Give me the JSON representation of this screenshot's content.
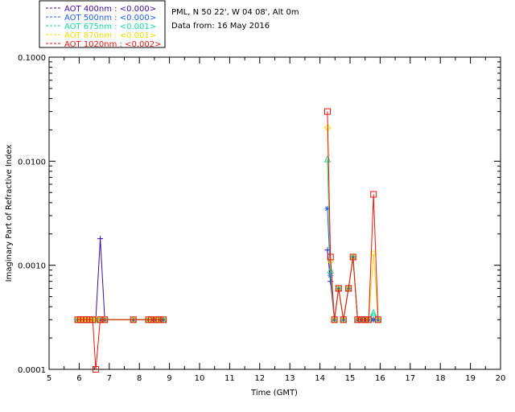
{
  "header": {
    "location": "PML, N 50 22', W 04 08', Alt 0m",
    "date": "Data from: 16 May 2016"
  },
  "chart_data": {
    "type": "line",
    "title": "",
    "xlabel": "Time (GMT)",
    "ylabel": "Imaginary Part of Refractive Index",
    "xlim": [
      5,
      20
    ],
    "ylim": [
      0.0001,
      0.1
    ],
    "yscale": "log",
    "grid": false,
    "legend_position": "top-left",
    "x_ticks": [
      "5",
      "6",
      "7",
      "8",
      "9",
      "10",
      "11",
      "12",
      "13",
      "14",
      "15",
      "16",
      "17",
      "18",
      "19",
      "20"
    ],
    "y_ticks": [
      {
        "value": 0.0001,
        "label": "0.0001"
      },
      {
        "value": 0.001,
        "label": "0.0010"
      },
      {
        "value": 0.01,
        "label": "0.0100"
      },
      {
        "value": 0.1,
        "label": "0.1000"
      }
    ],
    "series": [
      {
        "name": "AOT  400nm : <0.000>",
        "color": "#3c0ca8",
        "marker": "plus",
        "x": [
          5.95,
          6.05,
          6.15,
          6.25,
          6.35,
          6.45,
          6.55,
          6.7,
          6.85,
          7.8,
          8.3,
          8.4,
          8.55,
          8.65,
          8.8,
          14.25,
          14.35,
          14.48,
          14.62,
          14.78,
          14.95,
          15.1,
          15.25,
          15.38,
          15.5,
          15.62,
          15.78,
          15.93
        ],
        "y": [
          0.0003,
          0.0003,
          0.0003,
          0.0003,
          0.0003,
          0.0003,
          0.0003,
          0.0018,
          0.0003,
          0.0003,
          0.0003,
          0.0003,
          0.0003,
          0.0003,
          0.0003,
          0.0014,
          0.0007,
          0.0003,
          0.0006,
          0.0003,
          0.0006,
          0.0012,
          0.0003,
          0.0003,
          0.0003,
          0.0003,
          0.0003,
          0.0003
        ]
      },
      {
        "name": "AOT  500nm : <0.000>",
        "color": "#1f5ef0",
        "marker": "asterisk",
        "x": [
          5.95,
          6.05,
          6.15,
          6.25,
          6.35,
          6.45,
          6.55,
          6.7,
          6.85,
          7.8,
          8.3,
          8.4,
          8.55,
          8.65,
          8.8,
          14.25,
          14.35,
          14.48,
          14.62,
          14.78,
          14.95,
          15.1,
          15.25,
          15.38,
          15.5,
          15.62,
          15.78,
          15.93
        ],
        "y": [
          0.0003,
          0.0003,
          0.0003,
          0.0003,
          0.0003,
          0.0003,
          0.0003,
          0.0003,
          0.0003,
          0.0003,
          0.0003,
          0.0003,
          0.0003,
          0.0003,
          0.0003,
          0.0035,
          0.0008,
          0.0003,
          0.0006,
          0.0003,
          0.0006,
          0.0012,
          0.0003,
          0.0003,
          0.0003,
          0.0003,
          0.0003,
          0.0003
        ]
      },
      {
        "name": "AOT  675nm : <0.001>",
        "color": "#16d6a0",
        "marker": "triangle",
        "x": [
          5.95,
          6.05,
          6.15,
          6.25,
          6.35,
          6.45,
          6.55,
          6.7,
          6.85,
          7.8,
          8.3,
          8.4,
          8.55,
          8.65,
          8.8,
          14.25,
          14.35,
          14.48,
          14.62,
          14.78,
          14.95,
          15.1,
          15.25,
          15.38,
          15.5,
          15.62,
          15.78,
          15.93
        ],
        "y": [
          0.0003,
          0.0003,
          0.0003,
          0.0003,
          0.0003,
          0.0003,
          0.0003,
          0.0003,
          0.0003,
          0.0003,
          0.0003,
          0.0003,
          0.0003,
          0.0003,
          0.0003,
          0.0105,
          0.0009,
          0.0003,
          0.0006,
          0.0003,
          0.0006,
          0.0012,
          0.0003,
          0.0003,
          0.0003,
          0.0003,
          0.00035,
          0.0003
        ]
      },
      {
        "name": "AOT  870nm : <0.001>",
        "color": "#f2dc00",
        "marker": "diamond",
        "x": [
          5.95,
          6.05,
          6.15,
          6.25,
          6.35,
          6.45,
          6.55,
          6.7,
          6.85,
          7.8,
          8.3,
          8.4,
          8.55,
          8.65,
          8.8,
          14.25,
          14.35,
          14.48,
          14.62,
          14.78,
          14.95,
          15.1,
          15.25,
          15.38,
          15.5,
          15.62,
          15.78,
          15.93
        ],
        "y": [
          0.0003,
          0.0003,
          0.0003,
          0.0003,
          0.0003,
          0.0003,
          0.0003,
          0.0003,
          0.0003,
          0.0003,
          0.0003,
          0.0003,
          0.0003,
          0.0003,
          0.0003,
          0.021,
          0.0011,
          0.0003,
          0.0006,
          0.0003,
          0.0006,
          0.0012,
          0.0003,
          0.0003,
          0.0003,
          0.0003,
          0.0013,
          0.0003
        ]
      },
      {
        "name": "AOT 1020nm : <0.002>",
        "color": "#e8140c",
        "marker": "square",
        "x": [
          5.95,
          6.05,
          6.15,
          6.25,
          6.35,
          6.45,
          6.55,
          6.7,
          6.85,
          7.8,
          8.3,
          8.4,
          8.55,
          8.65,
          8.8,
          14.25,
          14.35,
          14.48,
          14.62,
          14.78,
          14.95,
          15.1,
          15.25,
          15.38,
          15.5,
          15.62,
          15.78,
          15.93
        ],
        "y": [
          0.0003,
          0.0003,
          0.0003,
          0.0003,
          0.0003,
          0.0003,
          0.0001,
          0.0003,
          0.0003,
          0.0003,
          0.0003,
          0.0003,
          0.0003,
          0.0003,
          0.0003,
          0.03,
          0.0012,
          0.0003,
          0.0006,
          0.0003,
          0.0006,
          0.0012,
          0.0003,
          0.0003,
          0.0003,
          0.0003,
          0.0048,
          0.0003
        ]
      }
    ]
  }
}
